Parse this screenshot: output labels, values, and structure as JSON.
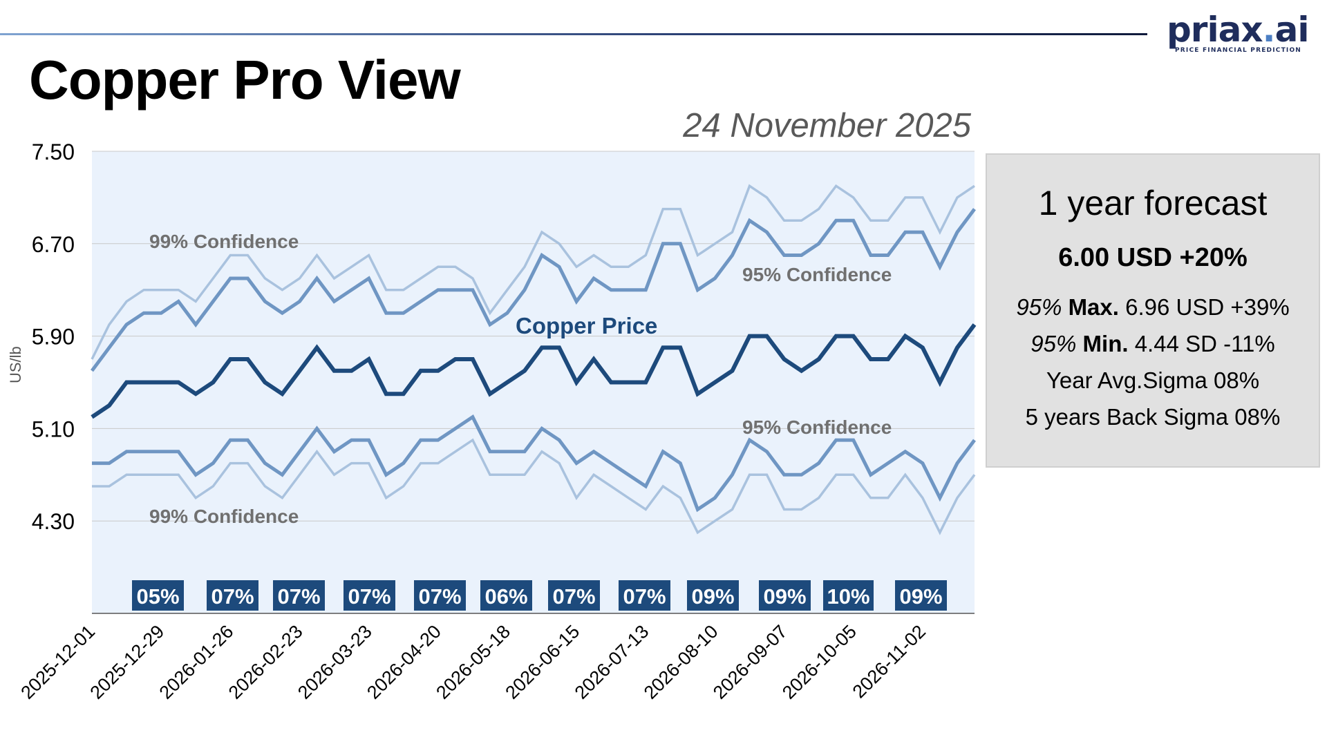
{
  "page": {
    "title": "Copper Pro View",
    "date": "24 November 2025",
    "logo": {
      "name": "priax.ai",
      "tagline": "PRICE FINANCIAL PREDICTION"
    }
  },
  "forecast_panel": {
    "title": "1 year forecast",
    "headline": "6.00 USD +20%",
    "max_label": "95%",
    "max_word": "Max.",
    "max_value": "6.96 USD +39%",
    "min_label": "95%",
    "min_word": "Min.",
    "min_value": "4.44 SD -11%",
    "year_sigma": "Year Avg.Sigma 08%",
    "back_sigma": "5 years Back Sigma 08%"
  },
  "colors": {
    "plot_background": "#eaf2fc",
    "price_line": "#1d4a7c",
    "confidence_95": "#6f96c3",
    "confidence_99": "#a9c2de",
    "sigma_box": "#1d4a7c",
    "annotation_text": "#707070"
  },
  "chart_data": {
    "type": "line",
    "ylabel": "US/lb",
    "ylim": [
      3.5,
      7.5
    ],
    "yticks": [
      "7.50",
      "6.70",
      "5.90",
      "5.10",
      "4.30"
    ],
    "x_labels": [
      "2025-12-01",
      "2025-12-29",
      "2026-01-26",
      "2026-02-23",
      "2026-03-23",
      "2026-04-20",
      "2026-05-18",
      "2026-06-15",
      "2026-07-13",
      "2026-08-10",
      "2026-09-07",
      "2026-10-05",
      "2026-11-02"
    ],
    "grid": true,
    "annotations": [
      {
        "text": "99% Confidence",
        "series": "upper99"
      },
      {
        "text": "95% Confidence",
        "series": "upper95"
      },
      {
        "text": "Copper Price",
        "series": "price"
      },
      {
        "text": "95% Confidence",
        "series": "lower95"
      },
      {
        "text": "99% Confidence",
        "series": "lower99"
      }
    ],
    "sigma_labels": [
      "05%",
      "07%",
      "07%",
      "07%",
      "07%",
      "06%",
      "07%",
      "07%",
      "09%",
      "09%",
      "10%",
      "09%"
    ],
    "series": [
      {
        "key": "upper99",
        "values": [
          5.7,
          6.0,
          6.2,
          6.3,
          6.3,
          6.3,
          6.2,
          6.4,
          6.6,
          6.6,
          6.4,
          6.3,
          6.4,
          6.6,
          6.4,
          6.5,
          6.6,
          6.3,
          6.3,
          6.4,
          6.5,
          6.5,
          6.4,
          6.1,
          6.3,
          6.5,
          6.8,
          6.7,
          6.5,
          6.6,
          6.5,
          6.5,
          6.6,
          7.0,
          7.0,
          6.6,
          6.7,
          6.8,
          7.2,
          7.1,
          6.9,
          6.9,
          7.0,
          7.2,
          7.1,
          6.9,
          6.9,
          7.1,
          7.1,
          6.8,
          7.1,
          7.2
        ]
      },
      {
        "key": "upper95",
        "values": [
          5.6,
          5.8,
          6.0,
          6.1,
          6.1,
          6.2,
          6.0,
          6.2,
          6.4,
          6.4,
          6.2,
          6.1,
          6.2,
          6.4,
          6.2,
          6.3,
          6.4,
          6.1,
          6.1,
          6.2,
          6.3,
          6.3,
          6.3,
          6.0,
          6.1,
          6.3,
          6.6,
          6.5,
          6.2,
          6.4,
          6.3,
          6.3,
          6.3,
          6.7,
          6.7,
          6.3,
          6.4,
          6.6,
          6.9,
          6.8,
          6.6,
          6.6,
          6.7,
          6.9,
          6.9,
          6.6,
          6.6,
          6.8,
          6.8,
          6.5,
          6.8,
          7.0
        ]
      },
      {
        "key": "price",
        "values": [
          5.2,
          5.3,
          5.5,
          5.5,
          5.5,
          5.5,
          5.4,
          5.5,
          5.7,
          5.7,
          5.5,
          5.4,
          5.6,
          5.8,
          5.6,
          5.6,
          5.7,
          5.4,
          5.4,
          5.6,
          5.6,
          5.7,
          5.7,
          5.4,
          5.5,
          5.6,
          5.8,
          5.8,
          5.5,
          5.7,
          5.5,
          5.5,
          5.5,
          5.8,
          5.8,
          5.4,
          5.5,
          5.6,
          5.9,
          5.9,
          5.7,
          5.6,
          5.7,
          5.9,
          5.9,
          5.7,
          5.7,
          5.9,
          5.8,
          5.5,
          5.8,
          6.0
        ]
      },
      {
        "key": "lower95",
        "values": [
          4.8,
          4.8,
          4.9,
          4.9,
          4.9,
          4.9,
          4.7,
          4.8,
          5.0,
          5.0,
          4.8,
          4.7,
          4.9,
          5.1,
          4.9,
          5.0,
          5.0,
          4.7,
          4.8,
          5.0,
          5.0,
          5.1,
          5.2,
          4.9,
          4.9,
          4.9,
          5.1,
          5.0,
          4.8,
          4.9,
          4.8,
          4.7,
          4.6,
          4.9,
          4.8,
          4.4,
          4.5,
          4.7,
          5.0,
          4.9,
          4.7,
          4.7,
          4.8,
          5.0,
          5.0,
          4.7,
          4.8,
          4.9,
          4.8,
          4.5,
          4.8,
          5.0
        ]
      },
      {
        "key": "lower99",
        "values": [
          4.6,
          4.6,
          4.7,
          4.7,
          4.7,
          4.7,
          4.5,
          4.6,
          4.8,
          4.8,
          4.6,
          4.5,
          4.7,
          4.9,
          4.7,
          4.8,
          4.8,
          4.5,
          4.6,
          4.8,
          4.8,
          4.9,
          5.0,
          4.7,
          4.7,
          4.7,
          4.9,
          4.8,
          4.5,
          4.7,
          4.6,
          4.5,
          4.4,
          4.6,
          4.5,
          4.2,
          4.3,
          4.4,
          4.7,
          4.7,
          4.4,
          4.4,
          4.5,
          4.7,
          4.7,
          4.5,
          4.5,
          4.7,
          4.5,
          4.2,
          4.5,
          4.7
        ]
      }
    ]
  }
}
